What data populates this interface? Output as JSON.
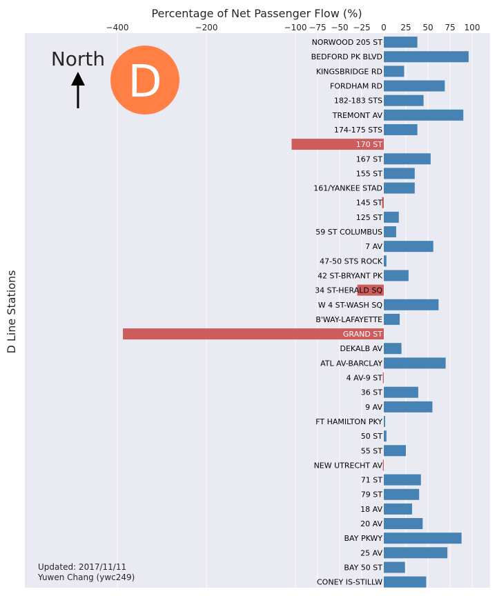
{
  "chart_data": {
    "type": "bar",
    "orientation": "horizontal",
    "title": "Percentage of Net Passenger Flow (%)",
    "xlabel": "Percentage of Net Passenger Flow (%)",
    "ylabel": "D Line Stations",
    "x_scale": "symlog",
    "x_linear_threshold": 100,
    "xlim": [
      -400,
      120
    ],
    "x_ticks": [
      -400,
      -200,
      -100,
      -75,
      -50,
      -25,
      0,
      25,
      50,
      75,
      100
    ],
    "x_tick_labels": [
      "−400",
      "−200",
      "−100",
      "−75",
      "−50",
      "−25",
      "0",
      "25",
      "50",
      "75",
      "100"
    ],
    "grid": true,
    "positive_color": "#4682B4",
    "negative_color": "#CD5C5C",
    "stations": [
      {
        "name": "NORWOOD 205 ST",
        "value": 38
      },
      {
        "name": "BEDFORD PK BLVD",
        "value": 96
      },
      {
        "name": "KINGSBRIDGE RD",
        "value": 23
      },
      {
        "name": "FORDHAM RD",
        "value": 69
      },
      {
        "name": "182-183 STS",
        "value": 45
      },
      {
        "name": "TREMONT AV",
        "value": 90
      },
      {
        "name": "174-175 STS",
        "value": 38
      },
      {
        "name": "170 ST",
        "value": -103
      },
      {
        "name": "167 ST",
        "value": 53
      },
      {
        "name": "155 ST",
        "value": 35
      },
      {
        "name": "161/YANKEE STAD",
        "value": 35
      },
      {
        "name": "145 ST",
        "value": -2
      },
      {
        "name": "125 ST",
        "value": 17
      },
      {
        "name": "59 ST COLUMBUS",
        "value": 14
      },
      {
        "name": "7 AV",
        "value": 56
      },
      {
        "name": "47-50 STS ROCK",
        "value": 3
      },
      {
        "name": "42 ST-BRYANT PK",
        "value": 28
      },
      {
        "name": "34 ST-HERALD SQ",
        "value": -30
      },
      {
        "name": "W 4 ST-WASH SQ",
        "value": 62
      },
      {
        "name": "B'WAY-LAFAYETTE",
        "value": 18
      },
      {
        "name": "GRAND ST",
        "value": -383
      },
      {
        "name": "DEKALB AV",
        "value": 20
      },
      {
        "name": "ATL AV-BARCLAY",
        "value": 70
      },
      {
        "name": "4 AV-9 ST",
        "value": -1
      },
      {
        "name": "36 ST",
        "value": 39
      },
      {
        "name": "9 AV",
        "value": 55
      },
      {
        "name": "FT HAMILTON PKY",
        "value": 1.5
      },
      {
        "name": "50 ST",
        "value": 3
      },
      {
        "name": "55 ST",
        "value": 25
      },
      {
        "name": "NEW UTRECHT AV",
        "value": -1
      },
      {
        "name": "71 ST",
        "value": 42
      },
      {
        "name": "79 ST",
        "value": 40
      },
      {
        "name": "18 AV",
        "value": 32
      },
      {
        "name": "20 AV",
        "value": 44
      },
      {
        "name": "BAY PKWY",
        "value": 88
      },
      {
        "name": "25 AV",
        "value": 72
      },
      {
        "name": "BAY 50 ST",
        "value": 24
      },
      {
        "name": "CONEY IS-STILLW",
        "value": 48
      }
    ],
    "annotations": {
      "north_label": "North",
      "line_badge": "D",
      "line_badge_color": "#FF7F45",
      "updated": "Updated: 2017/11/11",
      "author": "Yuwen Chang (ywc249)"
    }
  }
}
